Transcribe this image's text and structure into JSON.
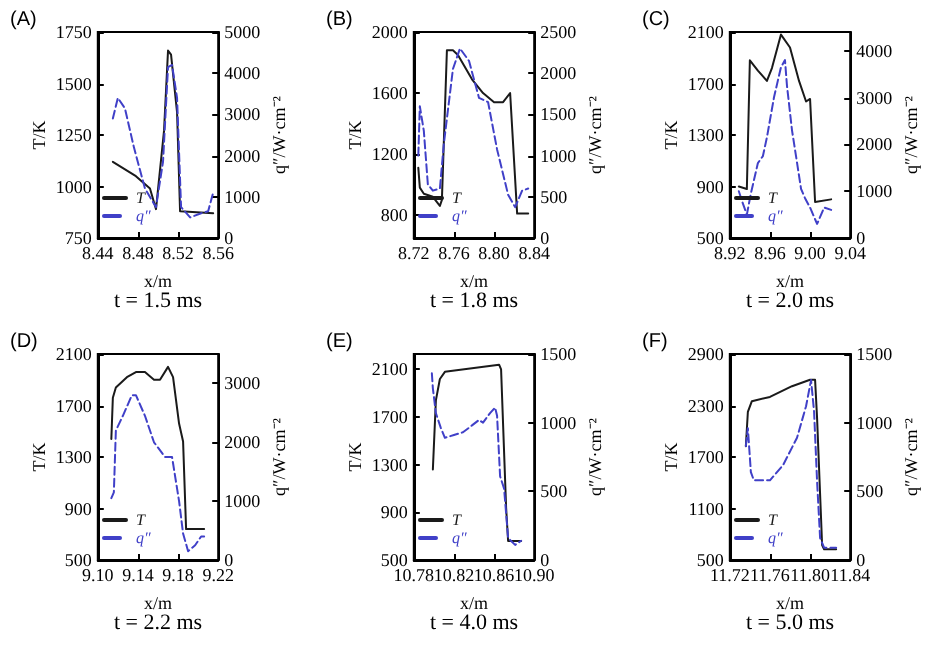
{
  "chart_data": [
    {
      "type": "line",
      "title": "(A)",
      "subtitle": "t = 1.5 ms",
      "xlabel": "x/m",
      "ylabel": "T/K",
      "y2label": "q″/W·cm⁻²",
      "xlim": [
        8.44,
        8.56
      ],
      "xticks": [
        8.44,
        8.48,
        8.52,
        8.56
      ],
      "ylim": [
        750,
        1750
      ],
      "yticks": [
        750,
        1000,
        1250,
        1500,
        1750
      ],
      "y2lim": [
        0,
        5000
      ],
      "y2ticks": [
        0,
        1000,
        2000,
        3000,
        4000,
        5000
      ],
      "grid": false,
      "legend": "bottom left",
      "marker": "none",
      "series": [
        {
          "name": "T",
          "color": "#1a1a1a",
          "line_style": "solid",
          "x": [
            8.455,
            8.478,
            8.492,
            8.498,
            8.506,
            8.51,
            8.513,
            8.519,
            8.522,
            8.555
          ],
          "values": [
            1120,
            1050,
            990,
            890,
            1270,
            1660,
            1640,
            1360,
            880,
            870
          ]
        },
        {
          "name": "q″",
          "color": "#4040c8",
          "line_style": "dashed",
          "axis": "y2",
          "x": [
            8.455,
            8.46,
            8.467,
            8.476,
            8.487,
            8.498,
            8.505,
            8.51,
            8.514,
            8.519,
            8.523,
            8.532,
            8.543,
            8.55,
            8.555
          ],
          "values": [
            2900,
            3400,
            3150,
            2200,
            1200,
            750,
            1850,
            4150,
            4200,
            3400,
            750,
            500,
            600,
            650,
            1100
          ]
        }
      ]
    },
    {
      "type": "line",
      "title": "(B)",
      "subtitle": "t = 1.8 ms",
      "xlabel": "x/m",
      "ylabel": "T/K",
      "y2label": "q″/W·cm⁻²",
      "xlim": [
        8.72,
        8.84
      ],
      "xticks": [
        8.72,
        8.76,
        {
          "value": 8.8,
          "label": "8.80"
        },
        8.84
      ],
      "ylim": [
        650,
        2000
      ],
      "yticks": [
        800,
        1200,
        1600,
        2000
      ],
      "y2lim": [
        0,
        2500
      ],
      "y2ticks": [
        0,
        500,
        1000,
        1500,
        2000,
        2500
      ],
      "grid": false,
      "legend": "bottom left",
      "marker": "none",
      "series": [
        {
          "name": "T",
          "color": "#1a1a1a",
          "line_style": "solid",
          "x": [
            8.7245,
            8.726,
            8.73,
            8.739,
            8.746,
            8.748,
            8.753,
            8.759,
            8.764,
            8.778,
            8.789,
            8.8,
            8.809,
            8.816,
            8.823,
            8.834
          ],
          "values": [
            1110,
            980,
            940,
            920,
            860,
            900,
            1880,
            1880,
            1850,
            1690,
            1600,
            1540,
            1540,
            1600,
            810,
            810
          ]
        },
        {
          "name": "q″",
          "color": "#4040c8",
          "line_style": "dashed",
          "axis": "y2",
          "x": [
            8.7245,
            8.726,
            8.73,
            8.734,
            8.739,
            8.746,
            8.75,
            8.759,
            8.766,
            8.775,
            8.785,
            8.794,
            8.803,
            8.814,
            8.821,
            8.828,
            8.834
          ],
          "values": [
            1000,
            1600,
            1300,
            650,
            575,
            600,
            1150,
            2050,
            2300,
            2150,
            1700,
            1650,
            1075,
            525,
            375,
            575,
            600
          ]
        }
      ]
    },
    {
      "type": "line",
      "title": "(C)",
      "subtitle": "t = 2.0 ms",
      "xlabel": "x/m",
      "ylabel": "T/K",
      "y2label": "q″/W·cm⁻²",
      "xlim": [
        8.92,
        9.04
      ],
      "xticks": [
        8.92,
        8.96,
        {
          "value": 9,
          "label": "9.00"
        },
        9.04
      ],
      "ylim": [
        500,
        2100
      ],
      "yticks": [
        500,
        900,
        1300,
        1700,
        2100
      ],
      "y2lim": [
        0,
        4400
      ],
      "y2ticks": [
        0,
        1000,
        2000,
        3000,
        4000
      ],
      "grid": false,
      "legend": "bottom left",
      "marker": "none",
      "series": [
        {
          "name": "T",
          "color": "#1a1a1a",
          "line_style": "solid",
          "x": [
            8.929,
            8.937,
            8.94,
            8.948,
            8.957,
            8.962,
            8.971,
            8.98,
            8.989,
            8.996,
            9.0,
            9.005,
            9.021
          ],
          "values": [
            900,
            880,
            1880,
            1800,
            1720,
            1820,
            2080,
            1980,
            1720,
            1560,
            1580,
            780,
            800
          ]
        },
        {
          "name": "q″",
          "color": "#4040c8",
          "line_style": "dashed",
          "axis": "y2",
          "x": [
            8.929,
            8.932,
            8.937,
            8.941,
            8.948,
            8.953,
            8.957,
            8.964,
            8.971,
            8.975,
            8.977,
            8.982,
            8.986,
            8.991,
            8.995,
            9.0,
            9.007,
            9.014,
            9.021
          ],
          "values": [
            1000,
            800,
            500,
            950,
            1600,
            1750,
            2150,
            3000,
            3650,
            3800,
            3250,
            2300,
            1750,
            1050,
            850,
            650,
            300,
            650,
            600
          ]
        }
      ]
    },
    {
      "type": "line",
      "title": "(D)",
      "subtitle": "t = 2.2 ms",
      "xlabel": "x/m",
      "ylabel": "T/K",
      "y2label": "q″/W·cm⁻²",
      "xlim": [
        9.1,
        9.22
      ],
      "xticks": [
        {
          "value": 9.1,
          "label": "9.10"
        },
        9.14,
        9.18,
        9.22
      ],
      "ylim": [
        500,
        2100
      ],
      "yticks": [
        500,
        900,
        1300,
        1700,
        2100
      ],
      "y2lim": [
        0,
        3500
      ],
      "y2ticks": [
        0,
        1000,
        2000,
        3000
      ],
      "grid": false,
      "legend": "bottom left",
      "marker": "none",
      "series": [
        {
          "name": "T",
          "color": "#1a1a1a",
          "line_style": "solid",
          "x": [
            9.1135,
            9.115,
            9.118,
            9.129,
            9.138,
            9.147,
            9.156,
            9.162,
            9.17,
            9.175,
            9.181,
            9.185,
            9.188,
            9.206
          ],
          "values": [
            1440,
            1760,
            1840,
            1920,
            1960,
            1960,
            1900,
            1900,
            2000,
            1920,
            1560,
            1420,
            740,
            740
          ]
        },
        {
          "name": "q″",
          "color": "#4040c8",
          "line_style": "dashed",
          "axis": "y2",
          "x": [
            9.1135,
            9.116,
            9.118,
            9.125,
            9.134,
            9.138,
            9.147,
            9.156,
            9.167,
            9.174,
            9.181,
            9.185,
            9.19,
            9.197,
            9.203,
            9.206
          ],
          "values": [
            1050,
            1150,
            2200,
            2450,
            2800,
            2800,
            2450,
            2000,
            1750,
            1750,
            1000,
            450,
            150,
            250,
            400,
            400
          ]
        }
      ]
    },
    {
      "type": "line",
      "title": "(E)",
      "subtitle": "t = 4.0 ms",
      "xlabel": "x/m",
      "ylabel": "T/K",
      "y2label": "q″/W·cm⁻²",
      "xlim": [
        10.78,
        10.9
      ],
      "xticks": [
        10.78,
        10.82,
        10.86,
        {
          "value": 10.9,
          "label": "10.90"
        }
      ],
      "ylim": [
        500,
        2230
      ],
      "yticks": [
        500,
        900,
        1300,
        1700,
        2100
      ],
      "y2lim": [
        0,
        1500
      ],
      "y2ticks": [
        0,
        500,
        1000,
        1500
      ],
      "grid": false,
      "legend": "bottom left",
      "marker": "none",
      "series": [
        {
          "name": "T",
          "color": "#1a1a1a",
          "line_style": "solid",
          "x": [
            10.799,
            10.802,
            10.806,
            10.811,
            10.865,
            10.867,
            10.872,
            10.874,
            10.887
          ],
          "values": [
            1260,
            1840,
            2020,
            2080,
            2140,
            2100,
            940,
            660,
            660
          ]
        },
        {
          "name": "q″",
          "color": "#4040c8",
          "line_style": "dashed",
          "axis": "y2",
          "x": [
            10.798,
            10.799,
            10.802,
            10.807,
            10.811,
            10.82,
            10.829,
            10.838,
            10.845,
            10.849,
            10.856,
            10.861,
            10.863,
            10.866,
            10.87,
            10.874,
            10.881,
            10.887
          ],
          "values": [
            1360,
            1250,
            1070,
            960,
            890,
            910,
            930,
            980,
            1020,
            1000,
            1070,
            1110,
            1050,
            610,
            520,
            160,
            110,
            140
          ]
        }
      ]
    },
    {
      "type": "line",
      "title": "(F)",
      "subtitle": "t = 5.0 ms",
      "xlabel": "x/m",
      "ylabel": "T/K",
      "y2label": "q″/W·cm⁻²",
      "xlim": [
        11.72,
        11.84
      ],
      "xticks": [
        11.72,
        11.76,
        {
          "value": 11.8,
          "label": "11.80"
        },
        11.84
      ],
      "ylim": [
        500,
        2900
      ],
      "yticks": [
        500,
        1100,
        1700,
        2300,
        2900
      ],
      "y2lim": [
        0,
        1500
      ],
      "y2ticks": [
        0,
        500,
        1000,
        1500
      ],
      "grid": false,
      "legend": "bottom left",
      "marker": "none",
      "series": [
        {
          "name": "T",
          "color": "#1a1a1a",
          "line_style": "solid",
          "x": [
            11.736,
            11.738,
            11.742,
            11.76,
            11.782,
            11.8,
            11.805,
            11.807,
            11.812,
            11.814,
            11.826
          ],
          "values": [
            1825,
            2225,
            2350,
            2400,
            2525,
            2600,
            2600,
            2150,
            675,
            625,
            625
          ]
        },
        {
          "name": "q″",
          "color": "#4040c8",
          "line_style": "dashed",
          "axis": "y2",
          "x": [
            11.736,
            11.738,
            11.741,
            11.744,
            11.76,
            11.773,
            11.787,
            11.796,
            11.801,
            11.804,
            11.807,
            11.81,
            11.814,
            11.826
          ],
          "values": [
            830,
            960,
            640,
            580,
            580,
            690,
            890,
            1120,
            1310,
            1080,
            570,
            160,
            90,
            90
          ]
        }
      ]
    }
  ]
}
